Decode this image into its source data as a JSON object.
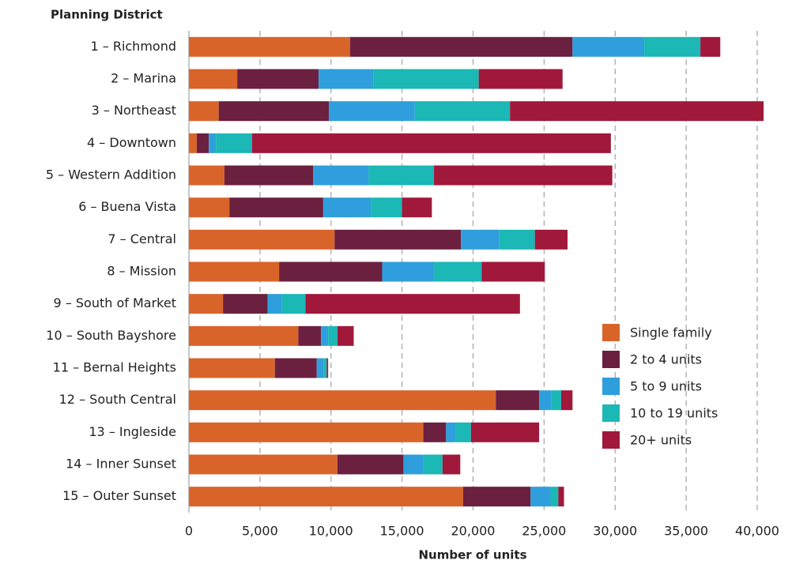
{
  "chart_data": {
    "type": "stacked_barh",
    "ylabel": "Planning District",
    "xlabel": "Number of units",
    "categories": [
      "1 – Richmond",
      "2 – Marina",
      "3 – Northeast",
      "4 – Downtown",
      "5 – Western Addition",
      "6 – Buena Vista",
      "7 – Central",
      "8 – Mission",
      "9 – South of Market",
      "10 – South Bayshore",
      "11 – Bernal Heights",
      "12 – South Central",
      "13 – Ingleside",
      "14 – Inner Sunset",
      "15 – Outer Sunset"
    ],
    "series": [
      {
        "name": "Single family",
        "color": "#d9642a",
        "values": [
          11350,
          3400,
          2100,
          550,
          2500,
          2850,
          10250,
          6350,
          2400,
          7700,
          6050,
          21600,
          16500,
          10450,
          19300
        ]
      },
      {
        "name": "2 to 4 units",
        "color": "#6b2040",
        "values": [
          15650,
          5730,
          7750,
          850,
          6250,
          6600,
          8900,
          7250,
          3150,
          1600,
          2950,
          3050,
          1600,
          4650,
          4750
        ]
      },
      {
        "name": "5 to 9 units",
        "color": "#2e9fdc",
        "values": [
          5050,
          3870,
          6050,
          500,
          3900,
          3350,
          2700,
          3650,
          1000,
          500,
          500,
          850,
          650,
          1400,
          1400
        ]
      },
      {
        "name": "10 to 19 units",
        "color": "#1bb8b5",
        "values": [
          3950,
          7400,
          6700,
          2550,
          4600,
          2200,
          2500,
          3350,
          1650,
          650,
          200,
          700,
          1100,
          1350,
          550
        ]
      },
      {
        "name": "20+ units",
        "color": "#a0193a",
        "values": [
          1400,
          5900,
          17850,
          25250,
          12550,
          2100,
          2300,
          4450,
          15100,
          1150,
          100,
          800,
          4800,
          1250,
          400
        ]
      }
    ],
    "xlim": [
      0,
      40000
    ],
    "xticks": [
      0,
      {
        "value": 5000,
        "label": "5,000"
      },
      {
        "value": 10000,
        "label": "10,000"
      },
      {
        "value": 15000,
        "label": "15,000"
      },
      {
        "value": 20000,
        "label": "20,000"
      },
      {
        "value": 25000,
        "label": "25,000"
      },
      {
        "value": 30000,
        "label": "30,000"
      },
      {
        "value": 35000,
        "label": "35,000"
      },
      {
        "value": 40000,
        "label": "40,000"
      }
    ],
    "grid": true,
    "legend": "lower right"
  }
}
